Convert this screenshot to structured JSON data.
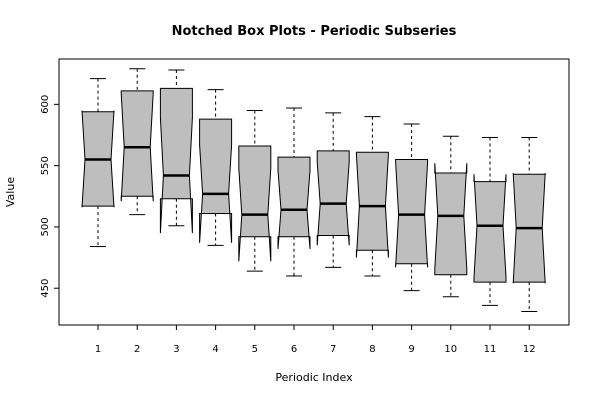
{
  "chart_data": {
    "type": "box",
    "notched": true,
    "title": "Notched Box Plots - Periodic Subseries",
    "xlabel": "Periodic Index",
    "ylabel": "Value",
    "categories": [
      "1",
      "2",
      "3",
      "4",
      "5",
      "6",
      "7",
      "8",
      "9",
      "10",
      "11",
      "12"
    ],
    "ylim": [
      420,
      637
    ],
    "yticks": [
      450,
      500,
      550,
      600
    ],
    "fill_color": "#bebebe",
    "line_color": "#000000",
    "boxes": [
      {
        "category": "1",
        "min": 484,
        "q1": 517,
        "median": 555,
        "q3": 594,
        "max": 621,
        "notch_low": 516,
        "notch_high": 595
      },
      {
        "category": "2",
        "min": 510,
        "q1": 525,
        "median": 565,
        "q3": 611,
        "max": 629,
        "notch_low": 521,
        "notch_high": 609
      },
      {
        "category": "3",
        "min": 501,
        "q1": 523,
        "median": 542,
        "q3": 613,
        "max": 628,
        "notch_low": 495,
        "notch_high": 589
      },
      {
        "category": "4",
        "min": 485,
        "q1": 511,
        "median": 527,
        "q3": 588,
        "max": 612,
        "notch_low": 487,
        "notch_high": 567
      },
      {
        "category": "5",
        "min": 464,
        "q1": 492,
        "median": 510,
        "q3": 566,
        "max": 595,
        "notch_low": 472,
        "notch_high": 548
      },
      {
        "category": "6",
        "min": 460,
        "q1": 492,
        "median": 514,
        "q3": 557,
        "max": 597,
        "notch_low": 482,
        "notch_high": 546
      },
      {
        "category": "7",
        "min": 467,
        "q1": 493,
        "median": 519,
        "q3": 562,
        "max": 593,
        "notch_low": 485,
        "notch_high": 553
      },
      {
        "category": "8",
        "min": 460,
        "q1": 481,
        "median": 517,
        "q3": 561,
        "max": 590,
        "notch_low": 475,
        "notch_high": 559
      },
      {
        "category": "9",
        "min": 448,
        "q1": 470,
        "median": 510,
        "q3": 555,
        "max": 584,
        "notch_low": 467,
        "notch_high": 553
      },
      {
        "category": "10",
        "min": 443,
        "q1": 461,
        "median": 509,
        "q3": 544,
        "max": 574,
        "notch_low": 466,
        "notch_high": 552
      },
      {
        "category": "11",
        "min": 436,
        "q1": 455,
        "median": 501,
        "q3": 537,
        "max": 573,
        "notch_low": 459,
        "notch_high": 543
      },
      {
        "category": "12",
        "min": 431,
        "q1": 455,
        "median": 499,
        "q3": 543,
        "max": 573,
        "notch_low": 454,
        "notch_high": 544
      }
    ]
  }
}
